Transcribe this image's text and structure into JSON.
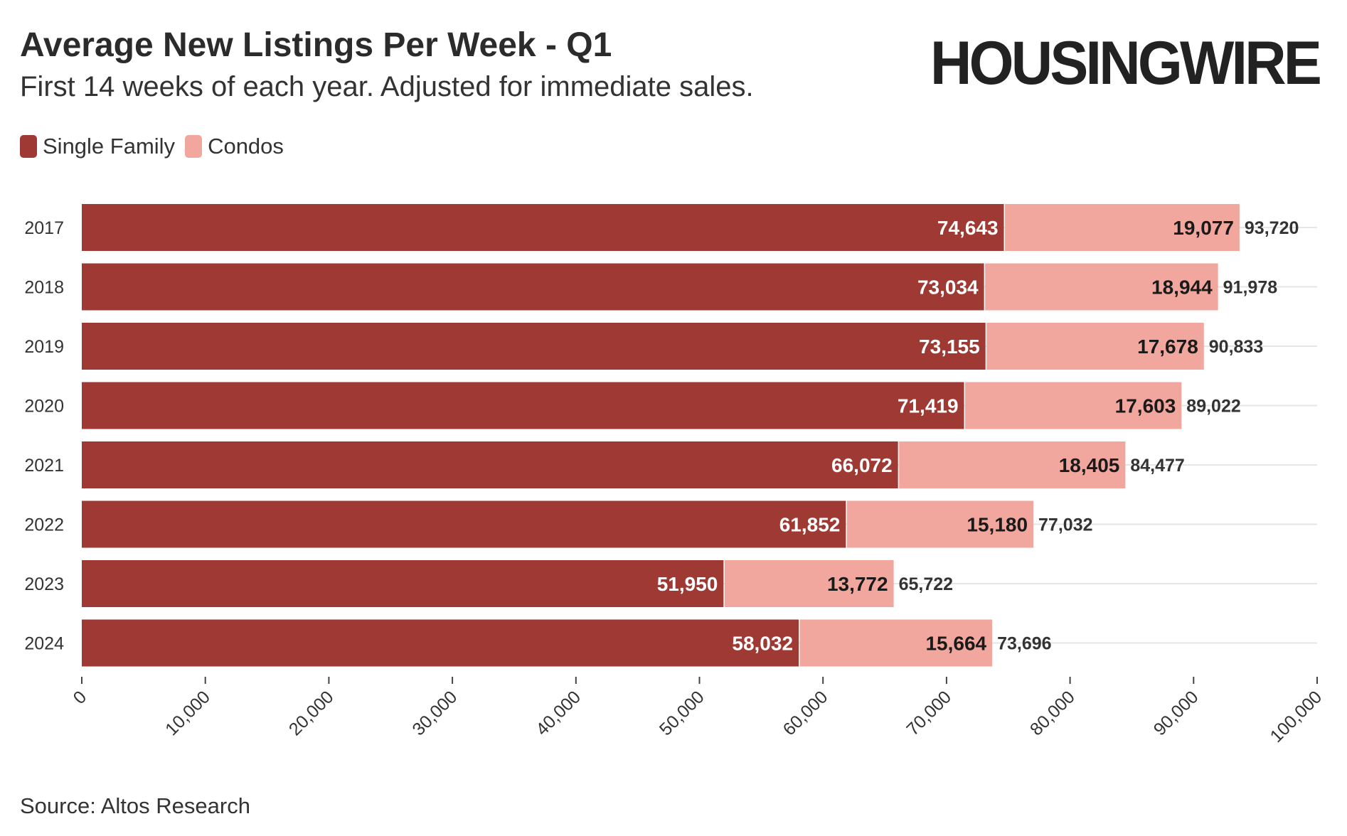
{
  "header": {
    "title": "Average New Listings Per Week - Q1",
    "subtitle": "First 14 weeks of each year. Adjusted for immediate sales.",
    "brand": "HOUSINGWIRE"
  },
  "footer": {
    "source": "Source: Altos Research"
  },
  "colors": {
    "single_family": "#9e3a33",
    "condos": "#f2a79e",
    "grid": "#e6e6e6",
    "text": "#333333"
  },
  "chart_data": {
    "type": "bar",
    "orientation": "horizontal",
    "stacked": true,
    "title": "Average New Listings Per Week - Q1",
    "subtitle": "First 14 weeks of each year. Adjusted for immediate sales.",
    "categories": [
      "2017",
      "2018",
      "2019",
      "2020",
      "2021",
      "2022",
      "2023",
      "2024"
    ],
    "series": [
      {
        "name": "Single Family",
        "values": [
          74643,
          73034,
          73155,
          71419,
          66072,
          61852,
          51950,
          58032
        ],
        "labels": [
          "74,643",
          "73,034",
          "73,155",
          "71,419",
          "66,072",
          "61,852",
          "51,950",
          "58,032"
        ]
      },
      {
        "name": "Condos",
        "values": [
          19077,
          18944,
          17678,
          17603,
          18405,
          15180,
          13772,
          15664
        ],
        "labels": [
          "19,077",
          "18,944",
          "17,678",
          "17,603",
          "18,405",
          "15,180",
          "13,772",
          "15,664"
        ]
      }
    ],
    "totals": [
      93720,
      91978,
      90833,
      89022,
      84477,
      77032,
      65722,
      73696
    ],
    "total_labels": [
      "93,720",
      "91,978",
      "90,833",
      "89,022",
      "84,477",
      "77,032",
      "65,722",
      "73,696"
    ],
    "xlim": [
      0,
      100000
    ],
    "xticks": [
      0,
      10000,
      20000,
      30000,
      40000,
      50000,
      60000,
      70000,
      80000,
      90000,
      100000
    ],
    "xtick_labels": [
      "0",
      "10,000",
      "20,000",
      "30,000",
      "40,000",
      "50,000",
      "60,000",
      "70,000",
      "80,000",
      "90,000",
      "100,000"
    ],
    "xlabel": "",
    "ylabel": "",
    "legend": [
      "Single Family",
      "Condos"
    ],
    "legend_position": "top-left",
    "grid": true
  }
}
